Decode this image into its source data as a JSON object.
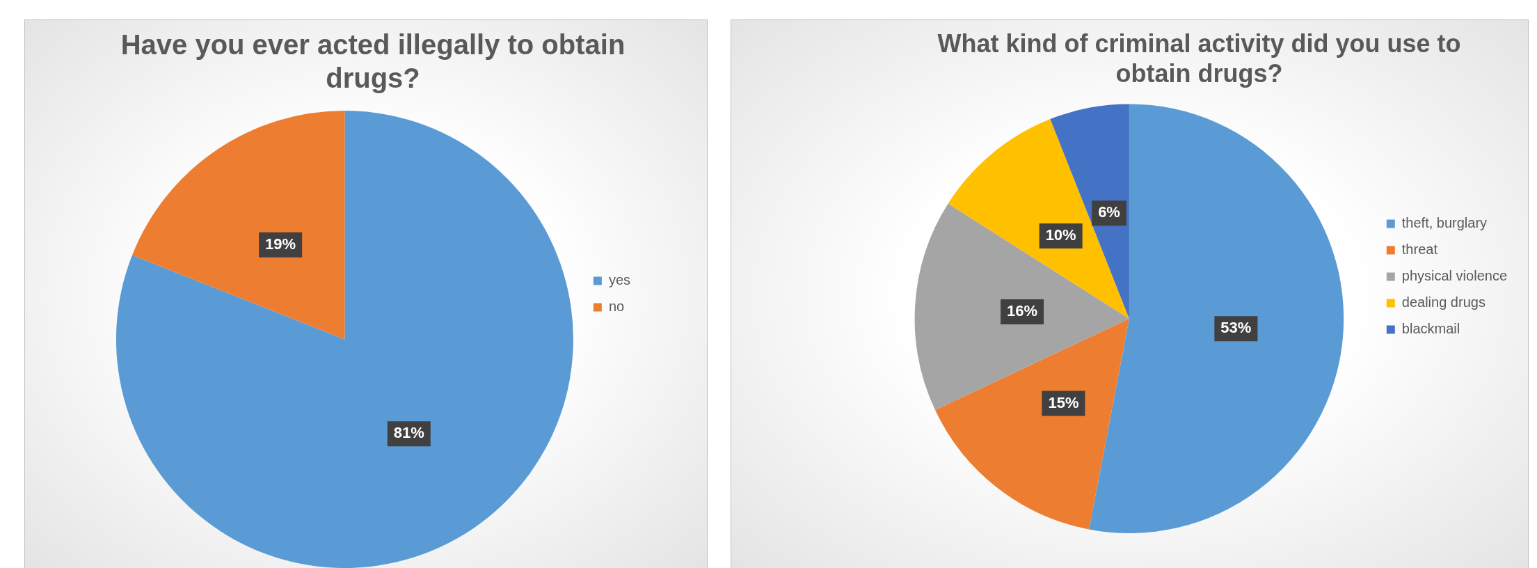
{
  "chart_data": [
    {
      "type": "pie",
      "title": "Have you ever acted illegally to obtain drugs?",
      "categories": [
        "yes",
        "no"
      ],
      "values": [
        81,
        19
      ],
      "value_labels": [
        "81%",
        "19%"
      ],
      "colors": [
        "#5b9bd5",
        "#ed7d31"
      ],
      "legend": "right"
    },
    {
      "type": "pie",
      "title": "What kind of criminal activity did you use to obtain drugs?",
      "categories": [
        "theft, burglary",
        "threat",
        "physical violence",
        "dealing drugs",
        "blackmail"
      ],
      "values": [
        53,
        15,
        16,
        10,
        6
      ],
      "value_labels": [
        "53%",
        "15%",
        "16%",
        "10%",
        "6%"
      ],
      "colors": [
        "#5b9bd5",
        "#ed7d31",
        "#a5a5a5",
        "#ffc000",
        "#4472c4"
      ],
      "legend": "right"
    }
  ]
}
